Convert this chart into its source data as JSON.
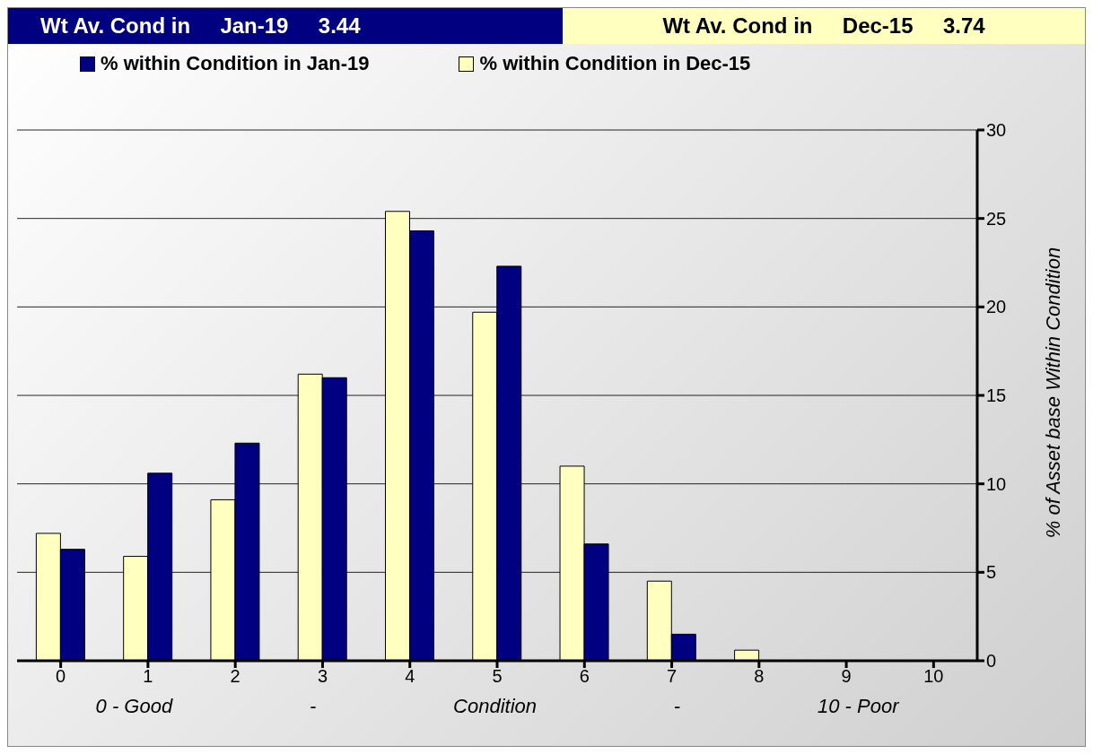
{
  "chart_data": {
    "type": "bar",
    "title": "Wt Av. Cond in     Jan-19     3.44",
    "subtitle": "Wt Av. Cond in     Dec-15     3.74",
    "xlabel": "0 - Good                         -                         Condition                         -                         10 - Poor",
    "ylabel": "% of Asset base Within Condition",
    "categories": [
      "0",
      "1",
      "2",
      "3",
      "4",
      "5",
      "6",
      "7",
      "8",
      "9",
      "10"
    ],
    "series": [
      {
        "name": "% within Condition in Jan-19",
        "color": "#000080",
        "values": [
          6.3,
          10.6,
          12.3,
          16.0,
          24.3,
          22.3,
          6.6,
          1.5,
          0,
          0,
          0
        ]
      },
      {
        "name": "% within Condition in Dec-15",
        "color": "#ffffc0",
        "values": [
          7.2,
          5.9,
          9.1,
          16.2,
          25.4,
          19.7,
          11.0,
          4.5,
          0.6,
          0,
          0
        ]
      }
    ],
    "ylim": [
      0,
      30
    ],
    "yticks": [
      0,
      5,
      10,
      15,
      20,
      25,
      30
    ],
    "grid": "y",
    "legend": "top"
  }
}
